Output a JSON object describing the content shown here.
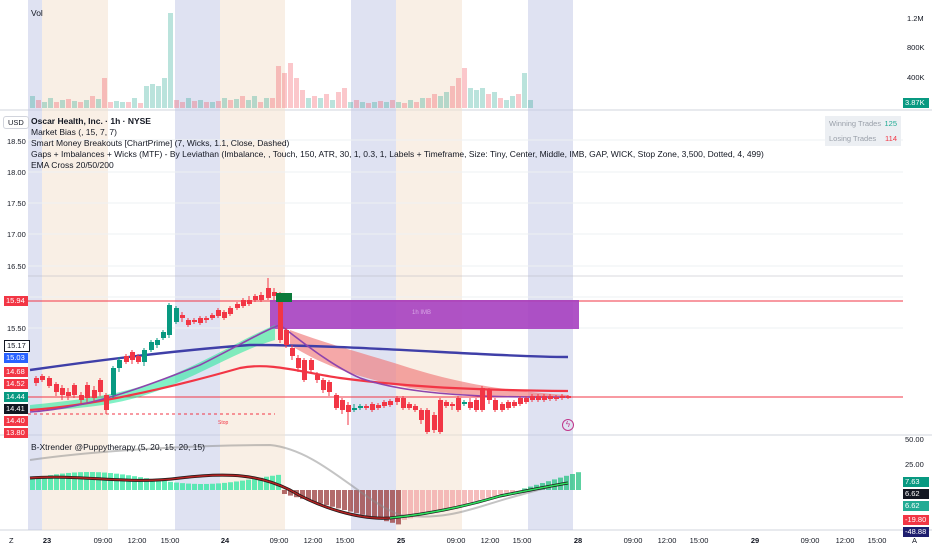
{
  "volume_pane": {
    "title": "Vol",
    "axis_ticks": [
      "1.2M",
      "800K",
      "400K"
    ],
    "last_value": "3.87K"
  },
  "main_pane": {
    "currency_button": "USD",
    "legend": [
      "Oscar Health, Inc. · 1h · NYSE",
      "Market Bias (, 15, 7, 7)",
      "Smart Money Breakouts [ChartPrime] (7, Wicks, 1.1, Close, Dashed)",
      "Gaps + Imbalances + Wicks (MTF) - By Leviathan (Imbalance, , Touch, 150, ATR, 30, 1, 0.3, 1, Labels + Timeframe, Size: Tiny, Center, Middle, IMB, GAP, WICK, Stop Zone, 3,500, Dotted, 4, 499)",
      "EMA Cross 20/50/200"
    ],
    "price_ticks": [
      "18.50",
      "18.00",
      "17.50",
      "17.00",
      "16.50",
      "15.50"
    ],
    "left_price_tags": [
      {
        "label": "15.94",
        "color": "#f23645"
      },
      {
        "label": "15.17",
        "color": "#ffffff"
      },
      {
        "label": "15.03",
        "color": "#2962ff"
      },
      {
        "label": "14.68",
        "color": "#f23645"
      },
      {
        "label": "14.52",
        "color": "#f23645"
      },
      {
        "label": "14.44",
        "color": "#089981"
      },
      {
        "label": "14.41",
        "color": "#131722"
      },
      {
        "label": "14.40",
        "color": "#f23645"
      },
      {
        "label": "13.80",
        "color": "#f23645"
      }
    ],
    "stats": {
      "winning_label": "Winning Trades",
      "winning_value": "125",
      "losing_label": "Losing Trades",
      "losing_value": "114"
    },
    "imbalance_label": "1h IMB",
    "marker_label": "Stop"
  },
  "osc_pane": {
    "title": "B-Xtrender @Puppytherapy (5, 20, 15, 20, 15)",
    "axis_ticks": [
      "50.00",
      "25.00"
    ],
    "right_tags": [
      {
        "label": "7.63",
        "color": "#089981"
      },
      {
        "label": "6.62",
        "color": "#131722"
      },
      {
        "label": "6.62",
        "color": "#22ab94"
      },
      {
        "label": "-19.80",
        "color": "#f23645"
      },
      {
        "label": "-48.88",
        "color": "#1e1e6e"
      }
    ]
  },
  "time_axis": {
    "labels": [
      "23",
      "09:00",
      "12:00",
      "15:00",
      "24",
      "09:00",
      "12:00",
      "15:00",
      "25",
      "09:00",
      "12:00",
      "15:00",
      "28",
      "09:00",
      "12:00",
      "15:00",
      "29",
      "09:00",
      "12:00",
      "15:00"
    ],
    "left_corner": "Z",
    "right_corner": "A"
  },
  "colors": {
    "up": "#089981",
    "down": "#f23645",
    "ema_fast": "#f23645",
    "ema_slow": "#3f3fa8",
    "imbalance_zone": "#a640c0",
    "session_blue": "#c5cbe8",
    "session_orange": "#f4e2cf"
  }
}
